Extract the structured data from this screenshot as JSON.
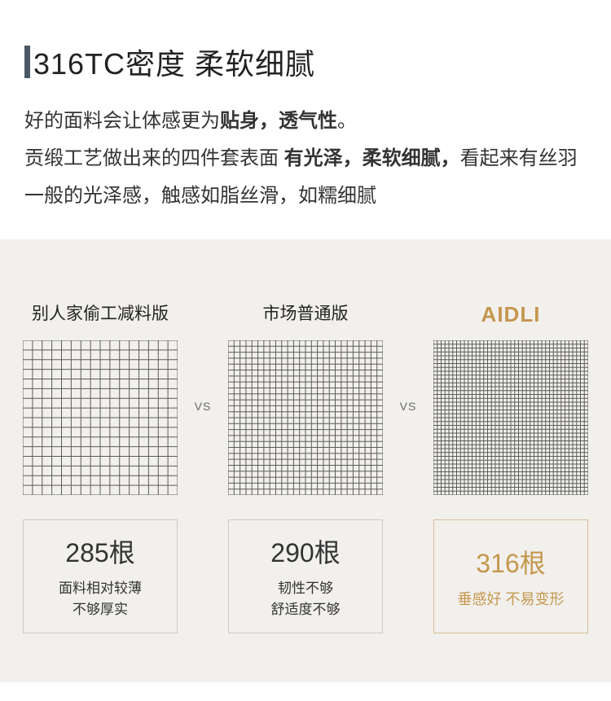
{
  "heading": "316TC密度 柔软细腻",
  "desc": {
    "line1a": "好的面料会让体感更为",
    "line1b": "贴身，透气性",
    "line1c": "。",
    "line2a": "贡缎工艺做出来的四件套表面 ",
    "line2b": "有光泽，柔软细腻，",
    "line2c": "看起来有丝羽一般的光泽感，触感如脂丝滑，如糯细腻"
  },
  "vs_label": "VS",
  "columns": [
    {
      "label": "别人家偷工减料版",
      "is_brand": false,
      "grid_density": 16,
      "count": "285根",
      "sub": "面料相对较薄\n不够厚实"
    },
    {
      "label": "市场普通版",
      "is_brand": false,
      "grid_density": 26,
      "count": "290根",
      "sub": "韧性不够\n舒适度不够"
    },
    {
      "label": "AIDLI",
      "is_brand": true,
      "grid_density": 40,
      "count": "316根",
      "sub": "垂感好 不易变形"
    }
  ],
  "style": {
    "accent_bar_color": "#4a5866",
    "brand_color": "#c5974e",
    "compare_bg": "#f2f0ed",
    "grid_line_color": "#5b5b5b",
    "border_color": "#cfcac3",
    "border_color_gold": "#d6be93"
  }
}
